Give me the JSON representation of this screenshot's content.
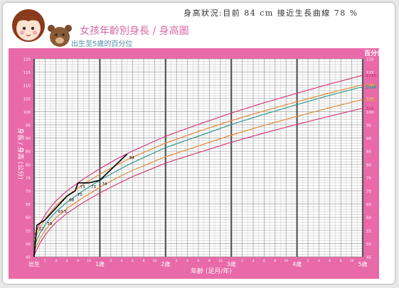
{
  "header": {
    "title": "女孩年齡別身長 / 身高圖",
    "subtitle": "出生至5歲的百分位",
    "note": "身高狀況:目前 84 cm 接近生長曲線 78 %"
  },
  "colors": {
    "frame_pink": "#e86aa8",
    "grid": "#999999",
    "p97": "#d23c7c",
    "p85": "#e08a3c",
    "p50": "#2e9a8a",
    "p15": "#e08a3c",
    "p3": "#d23c7c",
    "child_line": "#000000",
    "title": "#d86aa0",
    "subtitle": "#4d8fa8"
  },
  "chart_data": {
    "type": "line",
    "title": "女孩年齡別身長 / 身高圖",
    "subtitle": "出生至5歲的百分位",
    "xlabel": "年齡 (足月/年)",
    "ylabel": "身長 / 身高 (公分)",
    "right_axis_title": "百分位",
    "xlim": [
      0,
      60
    ],
    "ylim": [
      45,
      120
    ],
    "y_ticks": [
      45,
      50,
      55,
      60,
      65,
      70,
      75,
      80,
      85,
      90,
      95,
      100,
      105,
      110,
      115,
      120
    ],
    "x_major_labels": [
      {
        "month": 0,
        "label": "出生"
      },
      {
        "month": 12,
        "label": "1歲"
      },
      {
        "month": 24,
        "label": "2歲"
      },
      {
        "month": 36,
        "label": "3歲"
      },
      {
        "month": 48,
        "label": "4歲"
      },
      {
        "month": 60,
        "label": "5歲"
      }
    ],
    "x_month_labels": [
      "2",
      "4",
      "6",
      "8",
      "10",
      "2",
      "4",
      "6",
      "8",
      "10",
      "2",
      "4",
      "6",
      "8",
      "10",
      "2",
      "4",
      "6",
      "8",
      "10",
      "2",
      "4",
      "6",
      "8",
      "10"
    ],
    "series": [
      {
        "name": "97th",
        "points": [
          [
            0,
            52.7
          ],
          [
            1,
            57.4
          ],
          [
            2,
            60.9
          ],
          [
            3,
            63.8
          ],
          [
            4,
            66.2
          ],
          [
            6,
            70.0
          ],
          [
            9,
            74.5
          ],
          [
            12,
            78.4
          ],
          [
            15,
            82.0
          ],
          [
            18,
            85.1
          ],
          [
            24,
            90.7
          ],
          [
            30,
            95.2
          ],
          [
            36,
            99.5
          ],
          [
            42,
            103.4
          ],
          [
            48,
            107.0
          ],
          [
            54,
            110.5
          ],
          [
            60,
            113.8
          ]
        ]
      },
      {
        "name": "85th",
        "points": [
          [
            0,
            51.2
          ],
          [
            1,
            55.8
          ],
          [
            2,
            59.2
          ],
          [
            3,
            62.0
          ],
          [
            4,
            64.4
          ],
          [
            6,
            68.1
          ],
          [
            9,
            72.5
          ],
          [
            12,
            76.3
          ],
          [
            15,
            79.7
          ],
          [
            18,
            82.8
          ],
          [
            24,
            88.1
          ],
          [
            30,
            92.5
          ],
          [
            36,
            96.6
          ],
          [
            42,
            100.3
          ],
          [
            48,
            103.8
          ],
          [
            54,
            107.1
          ],
          [
            60,
            110.2
          ]
        ]
      },
      {
        "name": "50th",
        "points": [
          [
            0,
            49.1
          ],
          [
            1,
            53.7
          ],
          [
            2,
            57.1
          ],
          [
            3,
            59.8
          ],
          [
            4,
            62.1
          ],
          [
            6,
            65.7
          ],
          [
            9,
            70.1
          ],
          [
            12,
            74.0
          ],
          [
            15,
            77.5
          ],
          [
            18,
            80.7
          ],
          [
            24,
            86.4
          ],
          [
            30,
            90.7
          ],
          [
            36,
            95.1
          ],
          [
            42,
            99.0
          ],
          [
            48,
            102.7
          ],
          [
            54,
            106.2
          ],
          [
            60,
            109.4
          ]
        ]
      },
      {
        "name": "15th",
        "points": [
          [
            0,
            47.2
          ],
          [
            1,
            51.7
          ],
          [
            2,
            55.0
          ],
          [
            3,
            57.6
          ],
          [
            4,
            59.8
          ],
          [
            6,
            63.3
          ],
          [
            9,
            67.5
          ],
          [
            12,
            71.3
          ],
          [
            15,
            74.8
          ],
          [
            18,
            77.8
          ],
          [
            24,
            82.9
          ],
          [
            30,
            87.0
          ],
          [
            36,
            91.1
          ],
          [
            42,
            94.8
          ],
          [
            48,
            98.2
          ],
          [
            54,
            101.5
          ],
          [
            60,
            104.6
          ]
        ]
      },
      {
        "name": "3rd",
        "points": [
          [
            0,
            45.6
          ],
          [
            1,
            50.0
          ],
          [
            2,
            53.2
          ],
          [
            3,
            55.8
          ],
          [
            4,
            58.0
          ],
          [
            6,
            61.5
          ],
          [
            9,
            65.6
          ],
          [
            12,
            69.2
          ],
          [
            15,
            72.4
          ],
          [
            18,
            75.4
          ],
          [
            24,
            80.5
          ],
          [
            30,
            84.5
          ],
          [
            36,
            88.4
          ],
          [
            42,
            91.9
          ],
          [
            48,
            95.2
          ],
          [
            54,
            98.3
          ],
          [
            60,
            101.3
          ]
        ]
      }
    ],
    "child_measurements": [
      {
        "month": 0,
        "value": 45,
        "label": ""
      },
      {
        "month": 0.5,
        "value": 57,
        "label": "57"
      },
      {
        "month": 2,
        "value": 59,
        "label": "59"
      },
      {
        "month": 4,
        "value": 63.5,
        "label": "63.5"
      },
      {
        "month": 6,
        "value": 68,
        "label": "68"
      },
      {
        "month": 7.5,
        "value": 70,
        "label": "70"
      },
      {
        "month": 8,
        "value": 73,
        "label": "73"
      },
      {
        "month": 10,
        "value": 73,
        "label": "73"
      },
      {
        "month": 12,
        "value": 74,
        "label": "74"
      },
      {
        "month": 17,
        "value": 84,
        "label": "84"
      }
    ]
  }
}
